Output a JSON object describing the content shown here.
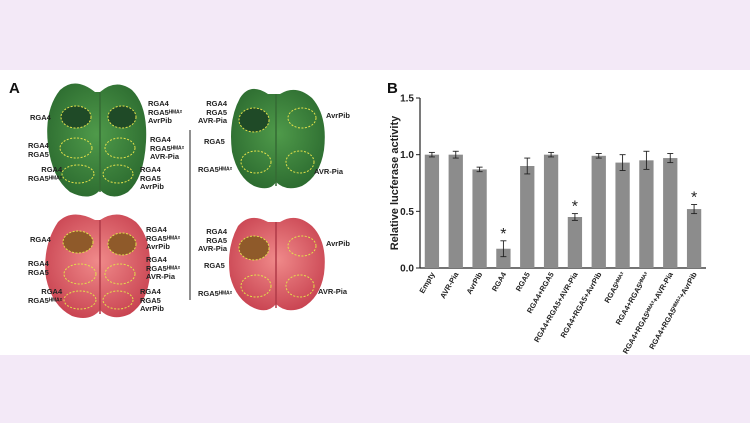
{
  "panels": {
    "a": "A",
    "b": "B"
  },
  "leaves": {
    "top_left": {
      "left": [
        [
          "RGA4"
        ],
        [
          "RGA4",
          "RGA5"
        ],
        [
          "RGA4",
          "RGA5ᴴᴹᴬ²"
        ]
      ],
      "right": [
        [
          "RGA4",
          "RGA5ᴴᴹᴬ²",
          "AvrPib"
        ],
        [
          "RGA4",
          "RGA5ᴴᴹᴬ²",
          "AVR-Pia"
        ],
        [
          "RGA4",
          "RGA5",
          "AvrPib"
        ]
      ]
    },
    "top_right": {
      "left": [
        [
          "RGA4",
          "RGA5",
          "AVR-Pia"
        ],
        [
          "RGA5"
        ],
        [
          "RGA5ᴴᴹᴬ²"
        ]
      ],
      "right": [
        [
          "AvrPib"
        ],
        [
          "AVR-Pia"
        ]
      ]
    },
    "bottom_left": {
      "left": [
        [
          "RGA4"
        ],
        [
          "RGA4",
          "RGA5"
        ],
        [
          "RGA4",
          "RGA5ᴴᴹᴬ²"
        ]
      ],
      "right": [
        [
          "RGA4",
          "RGA5ᴴᴹᴬ²",
          "AvrPib"
        ],
        [
          "RGA4",
          "RGA5ᴴᴹᴬ²",
          "AVR-Pia"
        ],
        [
          "RGA4",
          "RGA5",
          "AvrPib"
        ]
      ]
    },
    "bottom_right": {
      "left": [
        [
          "RGA4",
          "RGA5",
          "AVR-Pia"
        ],
        [
          "RGA5"
        ],
        [
          "RGA5ᴴᴹᴬ²"
        ]
      ],
      "right": [
        [
          "AvrPib"
        ],
        [
          "AVR-Pia"
        ]
      ]
    }
  },
  "chart_data": {
    "type": "bar",
    "ylabel": "Relative lucferase activity",
    "ylim": [
      0,
      1.5
    ],
    "yticks": [
      "0.0",
      "0.5",
      "1.0",
      "1.5"
    ],
    "categories": [
      "Empty",
      "AVR-Pia",
      "AvrPib",
      "RGA4",
      "RGA5",
      "RGA4+RGA5",
      "RGA4+RGA5+AVR-Pia",
      "RGA4+RGA5+AvrPib",
      "RGA5ᴴᴹᴬ²",
      "RGA4+RGA5ᴴᴹᴬ²",
      "RGA4+RGA5ᴴᴹᴬ²+AVR-Pia",
      "RGA4+RGA5ᴴᴹᴬ²+AvrPib"
    ],
    "values": [
      1.0,
      1.0,
      0.87,
      0.17,
      0.9,
      1.0,
      0.45,
      0.99,
      0.93,
      0.95,
      0.97,
      0.52
    ],
    "errors": [
      0.02,
      0.03,
      0.02,
      0.07,
      0.07,
      0.02,
      0.03,
      0.02,
      0.07,
      0.08,
      0.04,
      0.04
    ],
    "significance": [
      "",
      "",
      "",
      "*",
      "",
      "",
      "*",
      "",
      "",
      "",
      "",
      "*"
    ],
    "bar_color": "#8c8c8c"
  }
}
